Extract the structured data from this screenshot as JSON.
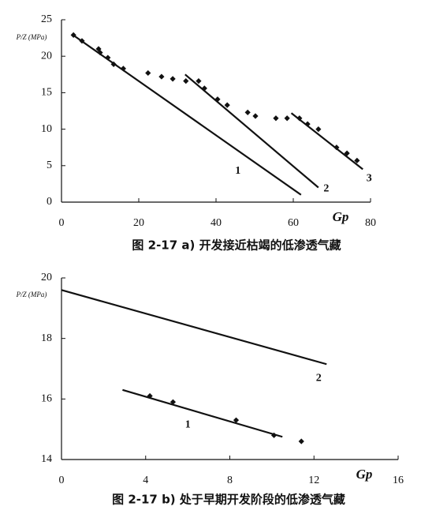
{
  "chart_data": [
    {
      "type": "scatter",
      "caption": "图 2-17 a) 开发接近枯竭的低渗透气藏",
      "y_label": "P/Z (MPa)",
      "x_label": "Gp",
      "xlim": [
        0,
        80
      ],
      "xticks": [
        0,
        20,
        40,
        60,
        80
      ],
      "ylim": [
        0,
        25
      ],
      "yticks": [
        0,
        5,
        10,
        15,
        20,
        25
      ],
      "grid": false,
      "color": "#111111",
      "points": {
        "x": [
          3.1,
          5.3,
          9.6,
          10,
          12,
          13.5,
          16,
          22.4,
          25.9,
          28.8,
          32.2,
          35.5,
          37,
          40.4,
          42.9,
          48.2,
          50.2,
          55.5,
          58.4,
          61.6,
          63.7,
          66.5,
          71.2,
          73.9,
          76.5
        ],
        "y": [
          22.9,
          22.1,
          21.0,
          20.5,
          19.8,
          18.9,
          18.3,
          17.7,
          17.2,
          16.9,
          16.6,
          16.6,
          15.6,
          14.1,
          13.3,
          12.3,
          11.8,
          11.5,
          11.5,
          11.5,
          10.7,
          10.0,
          7.5,
          6.7,
          5.7
        ]
      },
      "lines": [
        {
          "label": "1",
          "x": [
            3,
            62
          ],
          "y": [
            22.9,
            1
          ]
        },
        {
          "label": "2",
          "x": [
            32,
            66.5
          ],
          "y": [
            17.5,
            2
          ]
        },
        {
          "label": "3",
          "x": [
            59.5,
            78
          ],
          "y": [
            12.2,
            4.5
          ]
        }
      ]
    },
    {
      "type": "scatter",
      "caption": "图 2-17 b) 处于早期开发阶段的低渗透气藏",
      "y_label": "P/Z (MPa)",
      "x_label": "Gp",
      "xlim": [
        0,
        16
      ],
      "xticks": [
        0,
        4,
        8,
        12,
        16
      ],
      "ylim": [
        14,
        20
      ],
      "yticks": [
        14,
        16,
        18,
        20
      ],
      "grid": false,
      "color": "#111111",
      "points": {
        "x": [
          4.2,
          5.3,
          8.3,
          10.1,
          11.4
        ],
        "y": [
          16.1,
          15.9,
          15.3,
          14.8,
          14.6
        ]
      },
      "lines": [
        {
          "label": "2",
          "x": [
            0,
            12.6
          ],
          "y": [
            19.6,
            17.15
          ]
        },
        {
          "label": "1",
          "x": [
            2.9,
            10.5
          ],
          "y": [
            16.3,
            14.75
          ]
        }
      ]
    }
  ]
}
